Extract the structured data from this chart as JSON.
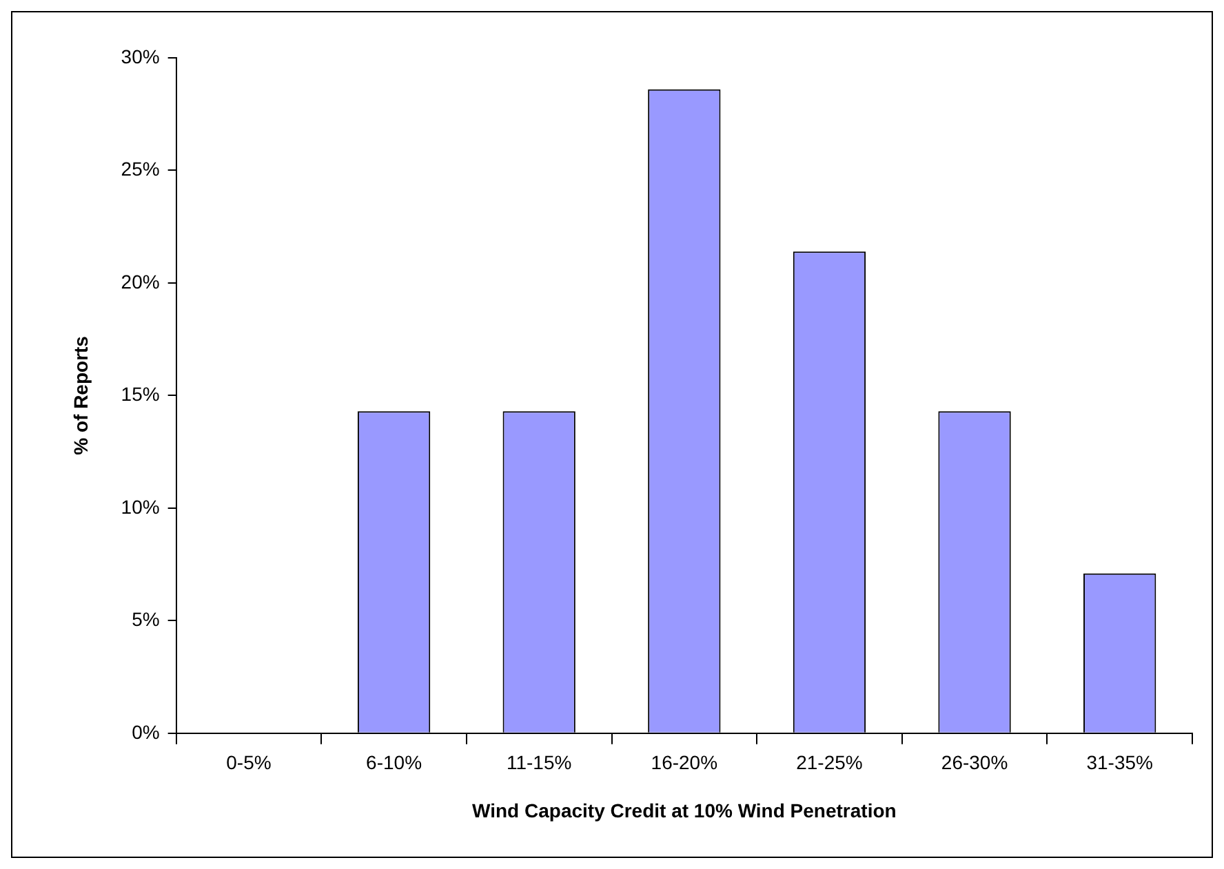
{
  "chart_data": {
    "type": "bar",
    "xlabel": "Wind Capacity Credit at 10% Wind Penetration",
    "ylabel": "% of Reports",
    "categories": [
      "0-5%",
      "6-10%",
      "11-15%",
      "16-20%",
      "21-25%",
      "26-30%",
      "31-35%"
    ],
    "values": [
      0,
      14.3,
      14.3,
      28.6,
      21.4,
      14.3,
      7.1
    ],
    "color": "#9999ff",
    "ylim": [
      0,
      30
    ],
    "yticks": [
      {
        "value": 0,
        "label": "0%"
      },
      {
        "value": 5,
        "label": "5%"
      },
      {
        "value": 10,
        "label": "10%"
      },
      {
        "value": 15,
        "label": "15%"
      },
      {
        "value": 20,
        "label": "20%"
      },
      {
        "value": 25,
        "label": "25%"
      },
      {
        "value": 30,
        "label": "30%"
      }
    ],
    "grid": false,
    "legend": false
  }
}
